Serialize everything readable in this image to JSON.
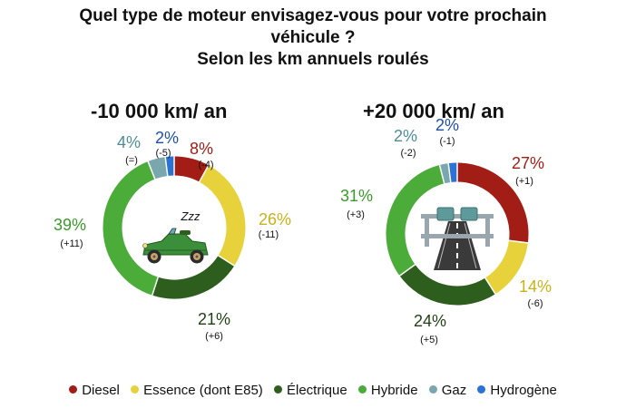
{
  "title_line1": "Quel type de moteur envisagez-vous pour votre prochain",
  "title_line2": "véhicule ?",
  "title_line3": "Selon les km annuels roulés",
  "legend": [
    {
      "label": "Diesel",
      "color": "#a21d16"
    },
    {
      "label": "Essence (dont E85)",
      "color": "#e8d23c"
    },
    {
      "label": "Électrique",
      "color": "#2d5e1e"
    },
    {
      "label": "Hybride",
      "color": "#4cac3a"
    },
    {
      "label": "Gaz",
      "color": "#7aa6ad"
    },
    {
      "label": "Hydrogène",
      "color": "#2a72d4"
    }
  ],
  "chart_data": [
    {
      "type": "pie",
      "title": "-10 000 km/ an",
      "categories": [
        "Diesel",
        "Essence (dont E85)",
        "Électrique",
        "Hybride",
        "Gaz",
        "Hydrogène"
      ],
      "values": [
        8,
        26,
        21,
        39,
        4,
        2
      ],
      "value_labels": [
        "8%",
        "26%",
        "21%",
        "39%",
        "4%",
        "2%"
      ],
      "change_labels": [
        "(-4)",
        "(-11)",
        "(+6)",
        "(+11)",
        "(=)",
        "(-5)"
      ],
      "center_text": "Zzz"
    },
    {
      "type": "pie",
      "title": "+20 000 km/ an",
      "categories": [
        "Diesel",
        "Essence (dont E85)",
        "Électrique",
        "Hybride",
        "Gaz",
        "Hydrogène"
      ],
      "values": [
        27,
        14,
        24,
        31,
        2,
        2
      ],
      "value_labels": [
        "27%",
        "14%",
        "24%",
        "31%",
        "2%",
        "2%"
      ],
      "change_labels": [
        "(+1)",
        "(-6)",
        "(+5)",
        "(+3)",
        "(-2)",
        "(-1)"
      ],
      "center_text": ""
    }
  ]
}
